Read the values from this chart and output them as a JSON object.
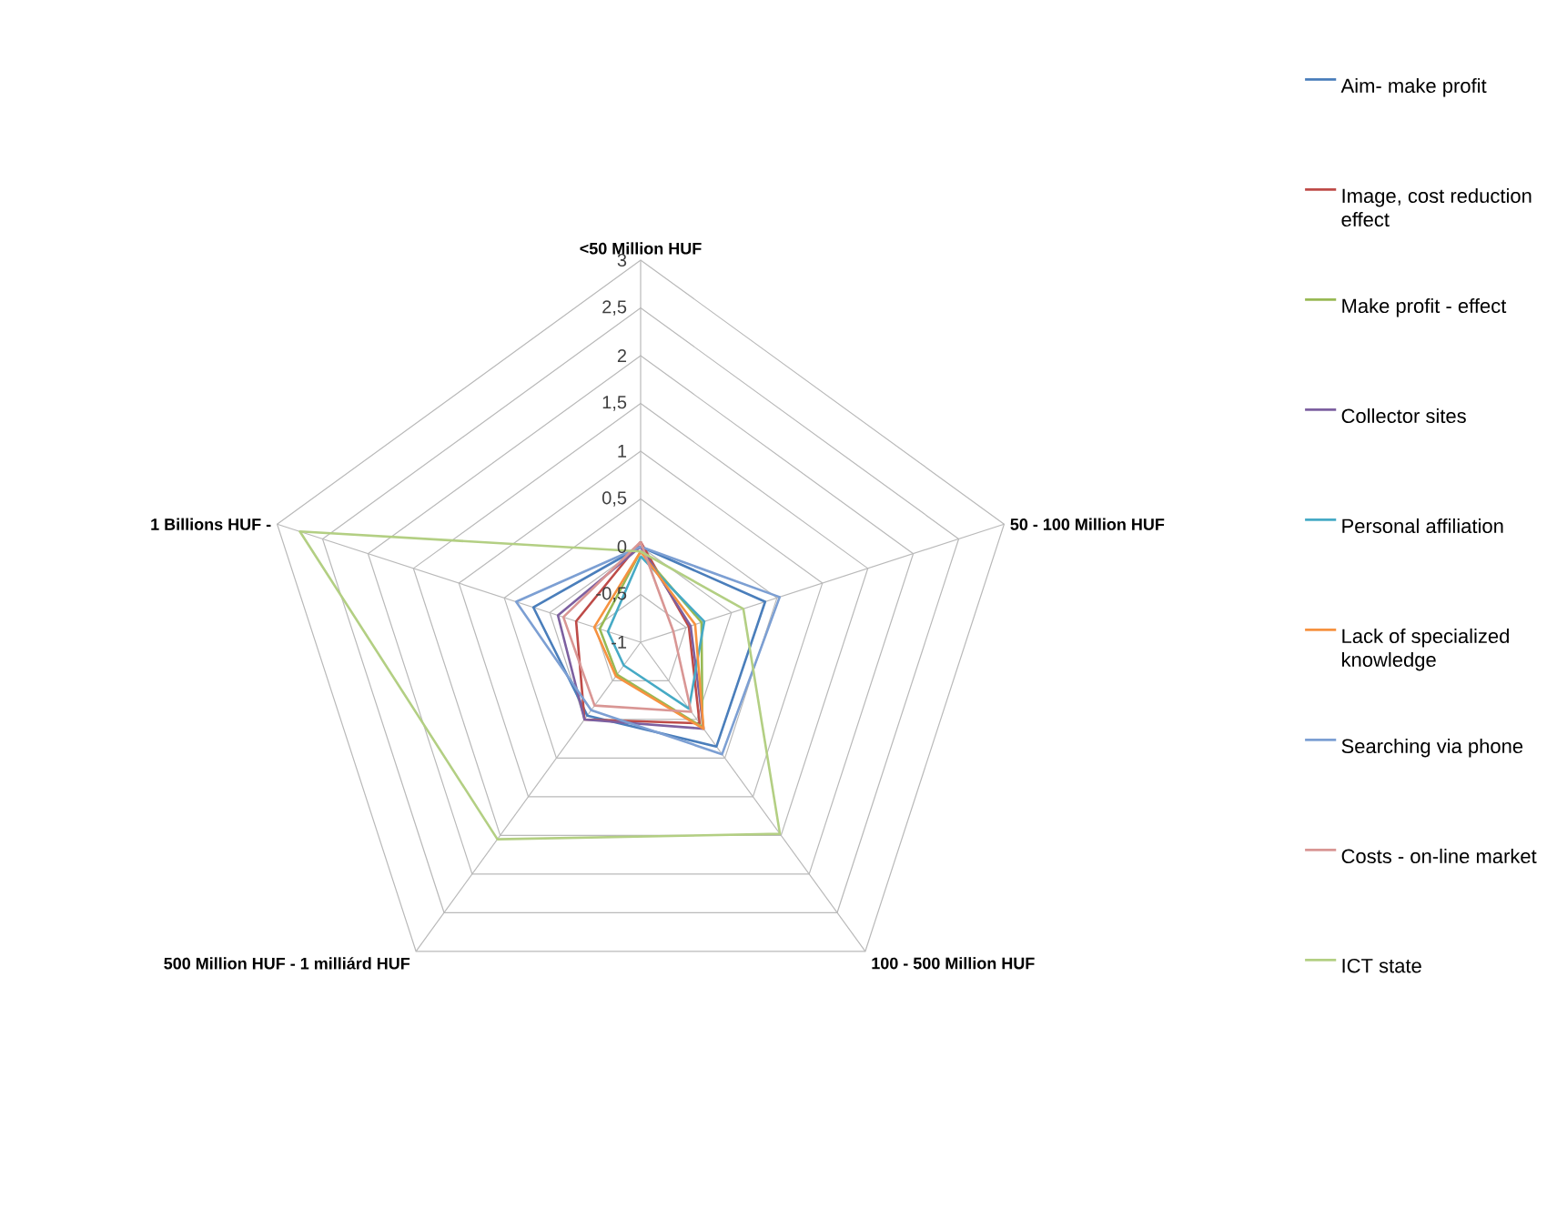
{
  "chart_data": {
    "type": "radar",
    "categories": [
      "<50 Million HUF",
      "50 - 100 Million HUF",
      "100 - 500 Million HUF",
      "500 Million HUF - 1 milliárd HUF",
      "1 Billions HUF -"
    ],
    "ylim": [
      -1,
      3
    ],
    "yticks": [
      -1,
      {
        "value": -0.5,
        "label": "-0,5"
      },
      0,
      {
        "value": 0.5,
        "label": "0,5"
      },
      1,
      {
        "value": 1.5,
        "label": "1,5"
      },
      2,
      {
        "value": 2.5,
        "label": "2,5"
      },
      3
    ],
    "legend": "right",
    "series": [
      {
        "name": "Aim- make profit",
        "color": "#4a7ebb",
        "values": [
          0,
          0.37,
          0.35,
          -0.05,
          0.18
        ]
      },
      {
        "name": "Image, cost reduction effect",
        "color": "#be4b48",
        "values": [
          0.05,
          -0.47,
          0.05,
          0,
          -0.29
        ]
      },
      {
        "name": "Make profit - effect",
        "color": "#98b954",
        "values": [
          -0.05,
          -0.33,
          0.1,
          -0.58,
          -0.55
        ]
      },
      {
        "name": "Collector sites",
        "color": "#7d60a0",
        "values": [
          0,
          -0.45,
          0.12,
          0,
          -0.09
        ]
      },
      {
        "name": "Personal affiliation",
        "color": "#46aac5",
        "values": [
          -0.1,
          -0.3,
          -0.14,
          -0.7,
          -0.64
        ]
      },
      {
        "name": "Lack of specialized knowledge",
        "color": "#f69240",
        "values": [
          -0.05,
          -0.4,
          0.12,
          -0.56,
          -0.49
        ]
      },
      {
        "name": "Searching via phone",
        "color": "#7c9fd3",
        "values": [
          0,
          0.53,
          0.45,
          -0.12,
          0.37
        ]
      },
      {
        "name": "Costs - on-line market",
        "color": "#d99694",
        "values": [
          0.05,
          -0.64,
          -0.1,
          -0.18,
          -0.15
        ]
      },
      {
        "name": "ICT state",
        "color": "#b3cf83",
        "values": [
          -0.05,
          0.13,
          1.48,
          1.55,
          2.75
        ]
      }
    ]
  }
}
